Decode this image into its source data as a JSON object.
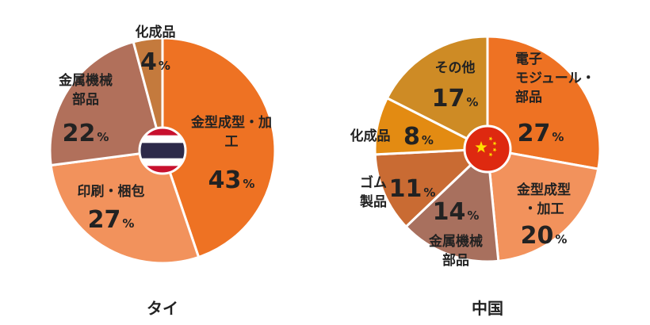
{
  "chart_data": [
    {
      "type": "pie",
      "title": "タイ",
      "center_icon": "thailand-flag-icon",
      "slices": [
        {
          "label": "金型成型・加工",
          "value": 43,
          "color": "#EE7223"
        },
        {
          "label": "印刷・梱包",
          "value": 27,
          "color": "#F2925C"
        },
        {
          "label": "金属機械部品",
          "value": 22,
          "color": "#B1705B"
        },
        {
          "label": "化成品",
          "value": 4,
          "color": "#C47A3D"
        }
      ]
    },
    {
      "type": "pie",
      "title": "中国",
      "center_icon": "china-flag-icon",
      "slices": [
        {
          "label": "電子モジュール・部品",
          "value": 27,
          "color": "#EE7223"
        },
        {
          "label": "金型成型・加工",
          "value": 20,
          "color": "#F2925C"
        },
        {
          "label": "金属機械部品",
          "value": 14,
          "color": "#A8705E"
        },
        {
          "label": "ゴム製品",
          "value": 11,
          "color": "#C96B33"
        },
        {
          "label": "化成品",
          "value": 8,
          "color": "#E38B12"
        },
        {
          "label": "その他",
          "value": 17,
          "color": "#CE8B25"
        }
      ]
    }
  ],
  "percent_sign": "%",
  "colors": {
    "text": "#222222",
    "separator": "#ffffff"
  }
}
